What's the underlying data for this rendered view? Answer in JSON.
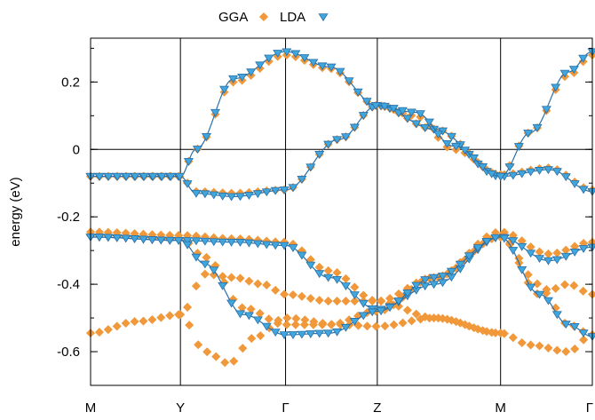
{
  "chart_data": {
    "type": "scatter",
    "ylabel": "energy (eV)",
    "ylim": [
      -0.7,
      0.33
    ],
    "yticks": [
      0.2,
      0,
      -0.2,
      -0.4,
      -0.6
    ],
    "ytick_labels": [
      "0.2",
      "0",
      "-0.2",
      "-0.4",
      "-0.6"
    ],
    "xlim": [
      0,
      5.25
    ],
    "k_points": [
      {
        "label": "M",
        "x": 0
      },
      {
        "label": "Y",
        "x": 0.94
      },
      {
        "label": "Γ",
        "x": 2.04
      },
      {
        "label": "Z",
        "x": 3.0
      },
      {
        "label": "M",
        "x": 4.29
      },
      {
        "label": "Γ",
        "x": 5.25
      }
    ],
    "legend": {
      "position": "top-center"
    },
    "colors": {
      "GGA": "#f0983a",
      "LDA": "#3fa7dd",
      "LDA_line": "#2a6fa8"
    },
    "series": [
      {
        "name": "GGA",
        "marker": "diamond",
        "bands": [
          {
            "x": [
              0,
              0.94,
              1.1,
              1.5,
              2.04,
              2.6,
              3.0,
              3.6,
              4.29,
              4.8,
              5.25
            ],
            "y": [
              -0.08,
              -0.08,
              -0.125,
              -0.13,
              -0.12,
              0.03,
              0.13,
              0.06,
              -0.075,
              -0.055,
              -0.12
            ]
          },
          {
            "x": [
              0,
              0.94,
              1.1,
              1.5,
              2.04,
              2.5,
              3.0,
              3.4,
              3.8,
              4.29
            ],
            "y": [
              -0.08,
              -0.08,
              0.0,
              0.2,
              0.28,
              0.24,
              0.13,
              0.1,
              0.0,
              -0.075
            ]
          },
          {
            "x": [
              4.29,
              4.6,
              5.0,
              5.25
            ],
            "y": [
              -0.075,
              0.05,
              0.22,
              0.28
            ]
          },
          {
            "x": [
              0,
              0.94,
              1.5,
              2.04,
              2.5,
              3.0,
              3.6,
              4.29,
              4.8,
              5.25
            ],
            "y": [
              -0.245,
              -0.255,
              -0.265,
              -0.275,
              -0.36,
              -0.45,
              -0.38,
              -0.245,
              -0.31,
              -0.275
            ]
          },
          {
            "x": [
              0,
              0.94,
              1.2,
              1.6,
              2.04,
              2.5,
              3.0,
              3.6,
              4.29
            ],
            "y": [
              -0.255,
              -0.265,
              -0.32,
              -0.47,
              -0.52,
              -0.52,
              -0.48,
              -0.38,
              -0.26
            ]
          },
          {
            "x": [
              4.29,
              4.7,
              5.0,
              5.25
            ],
            "y": [
              -0.26,
              -0.4,
              -0.52,
              -0.55
            ]
          },
          {
            "x": [
              0,
              0.5,
              0.94,
              1.2,
              1.5,
              1.8,
              2.04,
              2.5,
              3.0,
              3.6,
              4.29,
              4.6,
              5.0,
              5.25
            ],
            "y": [
              -0.545,
              -0.51,
              -0.49,
              -0.37,
              -0.38,
              -0.4,
              -0.43,
              -0.45,
              -0.45,
              -0.5,
              -0.545,
              -0.58,
              -0.6,
              -0.55
            ]
          },
          {
            "x": [
              0.94,
              1.2,
              1.45,
              1.7,
              2.04,
              2.6,
              3.0,
              3.6,
              4.29
            ],
            "y": [
              -0.49,
              -0.6,
              -0.635,
              -0.56,
              -0.5,
              -0.52,
              -0.525,
              -0.5,
              -0.545
            ]
          },
          {
            "x": [
              4.29,
              4.7,
              5.0,
              5.25
            ],
            "y": [
              -0.26,
              -0.43,
              -0.4,
              -0.43
            ]
          }
        ]
      },
      {
        "name": "LDA",
        "marker": "triangle-down",
        "bands": [
          {
            "x": [
              0,
              0.94,
              1.1,
              1.5,
              2.04,
              2.6,
              3.0,
              3.6,
              4.29,
              4.8,
              5.25
            ],
            "y": [
              -0.08,
              -0.08,
              -0.13,
              -0.14,
              -0.12,
              0.03,
              0.13,
              0.06,
              -0.08,
              -0.06,
              -0.125
            ]
          },
          {
            "x": [
              0,
              0.94,
              1.1,
              1.5,
              2.04,
              2.5,
              3.0,
              3.4,
              3.8,
              4.29
            ],
            "y": [
              -0.08,
              -0.08,
              0.0,
              0.21,
              0.29,
              0.245,
              0.13,
              0.11,
              0.01,
              -0.08
            ]
          },
          {
            "x": [
              4.29,
              4.6,
              5.0,
              5.25
            ],
            "y": [
              -0.08,
              0.05,
              0.23,
              0.29
            ]
          },
          {
            "x": [
              0,
              0.94,
              1.5,
              2.04,
              2.5,
              3.0,
              3.6,
              4.29,
              4.8,
              5.25
            ],
            "y": [
              -0.26,
              -0.27,
              -0.275,
              -0.285,
              -0.38,
              -0.475,
              -0.4,
              -0.26,
              -0.33,
              -0.29
            ]
          },
          {
            "x": [
              0,
              0.94,
              1.2,
              1.6,
              2.04,
              2.5,
              3.0,
              3.6,
              4.29,
              4.7,
              5.0,
              5.25
            ],
            "y": [
              -0.26,
              -0.27,
              -0.34,
              -0.49,
              -0.55,
              -0.545,
              -0.48,
              -0.38,
              -0.26,
              -0.43,
              -0.52,
              -0.555
            ]
          }
        ]
      }
    ]
  }
}
